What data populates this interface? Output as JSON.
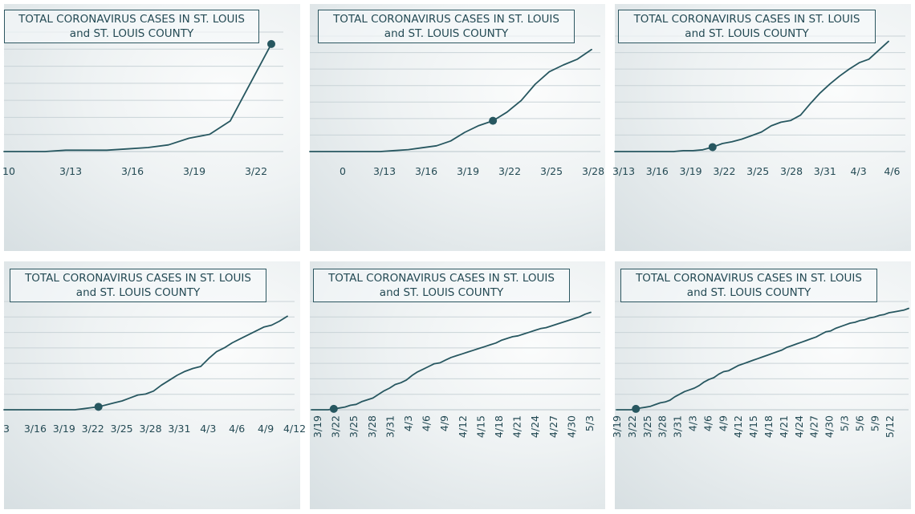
{
  "colors": {
    "line": "#275760",
    "grid": "#c9d3d7",
    "title_border": "#2d5761",
    "text": "#244a54"
  },
  "chart_data": [
    {
      "type": "line",
      "title": "TOTAL CORONAVIRUS CASES IN ST. LOUIS",
      "subtitle": "and ST. LOUIS COUNTY",
      "x_tick_labels": [
        "10",
        "3/13",
        "3/16",
        "3/19",
        "3/22"
      ],
      "x": [
        0,
        1,
        2,
        3,
        4,
        5,
        6,
        7,
        8,
        9,
        10,
        11,
        12,
        13
      ],
      "y": [
        0,
        0,
        0,
        1,
        1,
        1,
        2,
        3,
        5,
        10,
        13,
        23,
        52,
        81
      ],
      "ylim": [
        0,
        90
      ],
      "highlight_index": 13,
      "grid": true
    },
    {
      "type": "line",
      "title": "TOTAL CORONAVIRUS CASES IN ST. LOUIS",
      "subtitle": "and ST. LOUIS COUNTY",
      "x_tick_labels": [
        "0",
        "3/13",
        "3/16",
        "3/19",
        "3/22",
        "3/25",
        "3/28"
      ],
      "x": [
        0,
        1,
        2,
        3,
        4,
        5,
        6,
        7,
        8,
        9,
        10,
        11,
        12,
        13,
        14,
        15,
        16,
        17,
        18,
        19,
        20
      ],
      "y": [
        0,
        0,
        0,
        0,
        0,
        0,
        1,
        2,
        4,
        6,
        11,
        20,
        27,
        32,
        41,
        53,
        70,
        83,
        90,
        96,
        106
      ],
      "ylim": [
        0,
        120
      ],
      "highlight_index": 13,
      "grid": true
    },
    {
      "type": "line",
      "title": "TOTAL CORONAVIRUS CASES IN ST. LOUIS",
      "subtitle": "and ST. LOUIS COUNTY",
      "x_tick_labels": [
        "3/13",
        "3/16",
        "3/19",
        "3/22",
        "3/25",
        "3/28",
        "3/31",
        "4/3",
        "4/6"
      ],
      "x": [
        0,
        1,
        2,
        3,
        4,
        5,
        6,
        7,
        8,
        9,
        10,
        11,
        12,
        13,
        14,
        15,
        16,
        17,
        18,
        19,
        20,
        21,
        22,
        23,
        24,
        25,
        26,
        27,
        28
      ],
      "y": [
        0,
        0,
        0,
        0,
        0,
        0,
        0,
        1,
        1,
        2,
        5,
        9,
        11,
        14,
        18,
        22,
        29,
        33,
        35,
        41,
        54,
        66,
        76,
        85,
        93,
        100,
        104,
        114,
        124
      ],
      "ylim": [
        0,
        130
      ],
      "highlight_index": 10,
      "grid": true
    },
    {
      "type": "line",
      "title": "TOTAL CORONAVIRUS CASES IN ST. LOUIS",
      "subtitle": "and ST. LOUIS COUNTY",
      "x_tick_labels": [
        "3",
        "3/16",
        "3/19",
        "3/22",
        "3/25",
        "3/28",
        "3/31",
        "4/3",
        "4/6",
        "4/9",
        "4/12"
      ],
      "x": [
        0,
        1,
        2,
        3,
        4,
        5,
        6,
        7,
        8,
        9,
        10,
        11,
        12,
        13,
        14,
        15,
        16,
        17,
        18,
        19,
        20,
        21,
        22,
        23,
        24,
        25,
        26,
        27,
        28,
        29,
        30,
        31,
        32,
        33,
        34,
        35,
        36
      ],
      "y": [
        0,
        0,
        0,
        0,
        0,
        0,
        0,
        0,
        0,
        0,
        1,
        2,
        3,
        5,
        7,
        9,
        12,
        15,
        16,
        19,
        25,
        30,
        35,
        39,
        42,
        44,
        52,
        59,
        63,
        68,
        72,
        76,
        80,
        84,
        86,
        90,
        95
      ],
      "ylim": [
        0,
        110
      ],
      "highlight_index": 12,
      "grid": true
    },
    {
      "type": "line",
      "title": "TOTAL CORONAVIRUS CASES IN ST. LOUIS",
      "subtitle": "and ST. LOUIS COUNTY",
      "x_tick_labels": [
        "3/19",
        "3/22",
        "3/25",
        "3/28",
        "3/31",
        "4/3",
        "4/6",
        "4/9",
        "4/12",
        "4/15",
        "4/18",
        "4/21",
        "4/24",
        "4/27",
        "4/30",
        "5/3"
      ],
      "x": [
        0,
        1,
        2,
        3,
        4,
        5,
        6,
        7,
        8,
        9,
        10,
        11,
        12,
        13,
        14,
        15,
        16,
        17,
        18,
        19,
        20,
        21,
        22,
        23,
        24,
        25,
        26,
        27,
        28,
        29,
        30,
        31,
        32,
        33,
        34,
        35,
        36,
        37,
        38,
        39,
        40,
        41,
        42,
        43,
        44,
        45,
        46,
        47,
        48,
        49,
        50
      ],
      "y": [
        0,
        0,
        0,
        0,
        1,
        2,
        3,
        5,
        6,
        9,
        11,
        13,
        17,
        21,
        24,
        28,
        30,
        33,
        38,
        42,
        45,
        48,
        51,
        52,
        55,
        58,
        60,
        62,
        64,
        66,
        68,
        70,
        72,
        74,
        77,
        79,
        81,
        82,
        84,
        86,
        88,
        90,
        91,
        93,
        95,
        97,
        99,
        101,
        103,
        106,
        108
      ],
      "ylim": [
        0,
        120
      ],
      "highlight_index": 4,
      "grid": true
    },
    {
      "type": "line",
      "title": "TOTAL CORONAVIRUS CASES IN ST. LOUIS",
      "subtitle": "and ST. LOUIS COUNTY",
      "x_tick_labels": [
        "3/19",
        "3/22",
        "3/25",
        "3/28",
        "3/31",
        "4/3",
        "4/6",
        "4/9",
        "4/12",
        "4/15",
        "4/18",
        "4/21",
        "4/24",
        "4/27",
        "4/30",
        "5/3",
        "5/6",
        "5/9",
        "5/12"
      ],
      "x": [
        0,
        1,
        2,
        3,
        4,
        5,
        6,
        7,
        8,
        9,
        10,
        11,
        12,
        13,
        14,
        15,
        16,
        17,
        18,
        19,
        20,
        21,
        22,
        23,
        24,
        25,
        26,
        27,
        28,
        29,
        30,
        31,
        32,
        33,
        34,
        35,
        36,
        37,
        38,
        39,
        40,
        41,
        42,
        43,
        44,
        45,
        46,
        47,
        48,
        49,
        50,
        51,
        52,
        53,
        54,
        55,
        56,
        57,
        58,
        59,
        60
      ],
      "y": [
        0,
        0,
        0,
        0,
        1,
        2,
        3,
        4,
        6,
        8,
        9,
        11,
        15,
        18,
        21,
        23,
        25,
        28,
        32,
        35,
        37,
        41,
        44,
        45,
        48,
        51,
        53,
        55,
        57,
        59,
        61,
        63,
        65,
        67,
        69,
        72,
        74,
        76,
        78,
        80,
        82,
        84,
        87,
        90,
        91,
        94,
        96,
        98,
        100,
        101,
        103,
        104,
        106,
        107,
        109,
        110,
        112,
        113,
        114,
        115,
        117
      ],
      "ylim": [
        0,
        125
      ],
      "highlight_index": 4,
      "grid": true
    }
  ]
}
